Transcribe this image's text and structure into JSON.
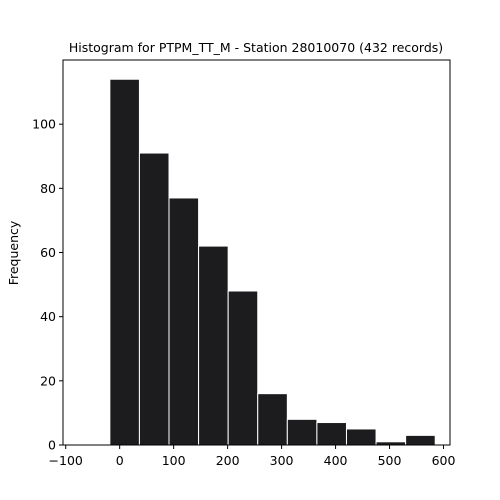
{
  "chart_data": {
    "type": "bar",
    "title": "Histogram for PTPM_TT_M - Station 28010070 (432 records)",
    "xlabel": "",
    "ylabel": "Frequency",
    "xlim": [
      -105,
      612
    ],
    "ylim": [
      0,
      120
    ],
    "xticks": [
      -100,
      0,
      100,
      200,
      300,
      400,
      500,
      600
    ],
    "yticks": [
      0,
      20,
      40,
      60,
      80,
      100
    ],
    "grid": false,
    "bin_edges": [
      -18.2,
      36.6,
      91.4,
      146.2,
      201.0,
      255.8,
      310.6,
      365.4,
      420.2,
      475.0,
      529.8,
      584.6
    ],
    "values": [
      114,
      91,
      77,
      62,
      48,
      16,
      8,
      7,
      5,
      1,
      3
    ],
    "bar_color": "#1c1c1f",
    "edge_color": "#ffffff"
  }
}
